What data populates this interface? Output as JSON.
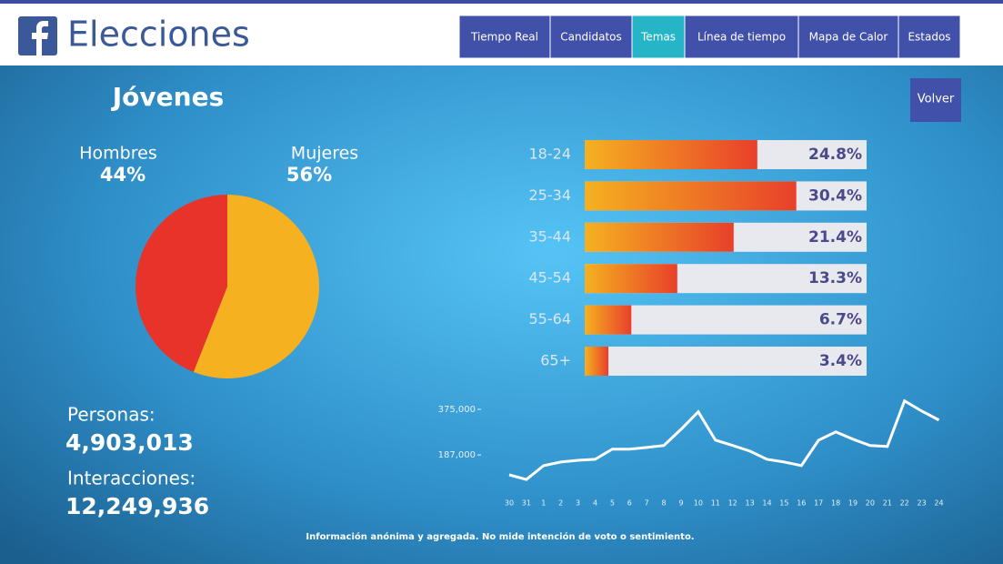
{
  "header": {
    "brand": "Elecciones",
    "nav": [
      "Tiempo Real",
      "Candidatos",
      "Temas",
      "Línea de tiempo",
      "Mapa de Calor",
      "Estados"
    ],
    "active": 2
  },
  "page": {
    "title": "Jóvenes",
    "button": "Volver",
    "stats": [
      {
        "label": "Personas:",
        "value": "4,903,013"
      },
      {
        "label": "Interacciones:",
        "value": "12,249,936"
      }
    ],
    "footer": "Información anónima y agregada. No mide intención de voto o sentimiento."
  },
  "chart_data": [
    {
      "type": "pie",
      "categories": [
        "Hombres",
        "Mujeres"
      ],
      "values": [
        44,
        56
      ],
      "value_labels": [
        "44%",
        "56%"
      ],
      "colors": [
        "#e8332a",
        "#f5b120"
      ]
    },
    {
      "type": "hbar",
      "categories": [
        "18-24",
        "25-34",
        "35-44",
        "45-54",
        "55-64",
        "65+"
      ],
      "values": [
        24.8,
        30.4,
        21.4,
        13.3,
        6.7,
        3.4
      ],
      "value_labels": [
        "24.8%",
        "30.4%",
        "21.4%",
        "13.3%",
        "6.7%",
        "3.4%"
      ],
      "xlim": [
        0,
        40.5
      ],
      "colors": [
        "#f5b120",
        "#e8402a"
      ]
    },
    {
      "type": "line",
      "categories": [
        "30",
        "31",
        "1",
        "2",
        "3",
        "4",
        "5",
        "6",
        "7",
        "8",
        "9",
        "10",
        "11",
        "12",
        "13",
        "14",
        "15",
        "16",
        "17",
        "18",
        "19",
        "20",
        "21",
        "22",
        "23",
        "24"
      ],
      "values": [
        105000,
        86000,
        143000,
        158000,
        165000,
        169000,
        211000,
        211000,
        218000,
        226000,
        293000,
        365000,
        248000,
        226000,
        203000,
        169000,
        158000,
        143000,
        248000,
        282000,
        252000,
        226000,
        222000,
        410000,
        368000,
        331000
      ],
      "ylim": [
        0,
        420000
      ],
      "yticks": [
        {
          "value": 187000,
          "label": "187,000"
        },
        {
          "value": 375000,
          "label": "375,000"
        }
      ],
      "color": "#ffffff"
    }
  ]
}
